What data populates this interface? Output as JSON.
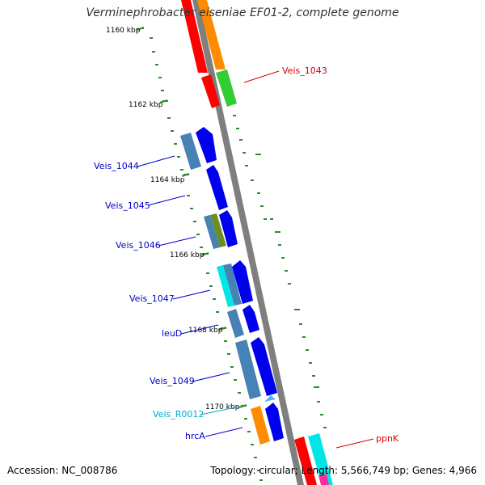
{
  "title": "Verminephrobacter eiseniae EF01-2, complete genome",
  "footer": {
    "accession": "Accession: NC_008786",
    "stats": "Topology: circular; Length: 5,566,749 bp; Genes: 4,966"
  },
  "kbp_ticks": [
    "1160 kbp",
    "1162 kbp",
    "1164 kbp",
    "1166 kbp",
    "1168 kbp",
    "1170 kbp"
  ],
  "colors": {
    "red": "#ff0000",
    "orange": "#ff8c00",
    "green": "#33cc33",
    "steel_blue": "#4682b4",
    "blue": "#0000ee",
    "olive": "#6b8e23",
    "cyan": "#00e5e5",
    "light_blue": "#4fb0ff",
    "magenta": "#ff2aa0",
    "dot_green": "#2e8b2e",
    "axis_grey": "#7f7f7f",
    "label_red": "#dd0000",
    "label_blue": "#0000cc",
    "label_cyan": "#00aacc"
  },
  "gene_labels": [
    {
      "name": "Veis_1043",
      "color": "label_red"
    },
    {
      "name": "Veis_1044",
      "color": "label_blue"
    },
    {
      "name": "Veis_1045",
      "color": "label_blue"
    },
    {
      "name": "Veis_1046",
      "color": "label_blue"
    },
    {
      "name": "Veis_1047",
      "color": "label_blue"
    },
    {
      "name": "leuD",
      "color": "label_blue"
    },
    {
      "name": "Veis_1049",
      "color": "label_blue"
    },
    {
      "name": "Veis_R0012",
      "color": "label_cyan"
    },
    {
      "name": "hrcA",
      "color": "label_blue"
    },
    {
      "name": "ppnK",
      "color": "label_red"
    }
  ]
}
